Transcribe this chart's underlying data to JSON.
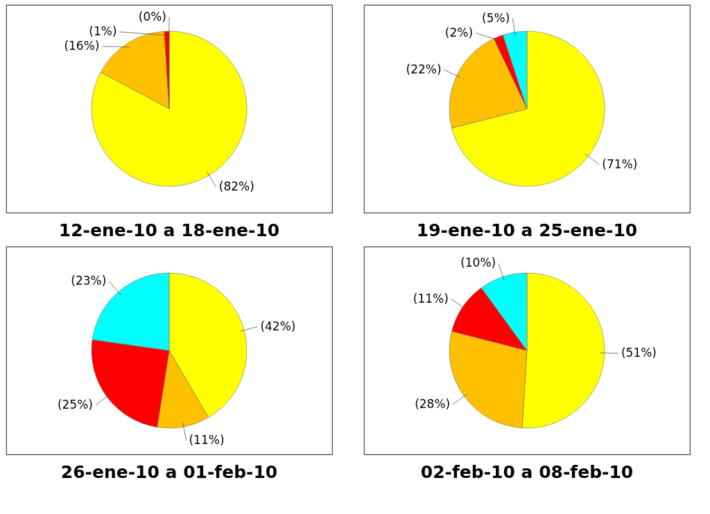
{
  "chart_data": [
    {
      "type": "pie",
      "title": "12-ene-10 a 18-ene-10",
      "categories": [
        null,
        null,
        null,
        null
      ],
      "values": [
        82,
        16,
        1,
        0
      ],
      "colors": [
        "#ffff00",
        "#ffc000",
        "#ff0000",
        "#00ffff"
      ],
      "value_labels": [
        "(82%)",
        "(16%)",
        "(1%)",
        "(0%)"
      ]
    },
    {
      "type": "pie",
      "title": "19-ene-10 a 25-ene-10",
      "categories": [
        null,
        null,
        null,
        null
      ],
      "values": [
        71,
        22,
        2,
        5
      ],
      "colors": [
        "#ffff00",
        "#ffc000",
        "#ff0000",
        "#00ffff"
      ],
      "value_labels": [
        "(71%)",
        "(22%)",
        "(2%)",
        "(5%)"
      ]
    },
    {
      "type": "pie",
      "title": "26-ene-10 a 01-feb-10",
      "categories": [
        null,
        null,
        null,
        null
      ],
      "values": [
        42,
        11,
        25,
        23
      ],
      "colors": [
        "#ffff00",
        "#ffc000",
        "#ff0000",
        "#00ffff"
      ],
      "value_labels": [
        "(42%)",
        "(11%)",
        "(25%)",
        "(23%)"
      ]
    },
    {
      "type": "pie",
      "title": "02-feb-10 a 08-feb-10",
      "categories": [
        null,
        null,
        null,
        null
      ],
      "values": [
        51,
        28,
        11,
        10
      ],
      "colors": [
        "#ffff00",
        "#ffc000",
        "#ff0000",
        "#00ffff"
      ],
      "value_labels": [
        "(51%)",
        "(28%)",
        "(11%)",
        "(10%)"
      ]
    }
  ]
}
